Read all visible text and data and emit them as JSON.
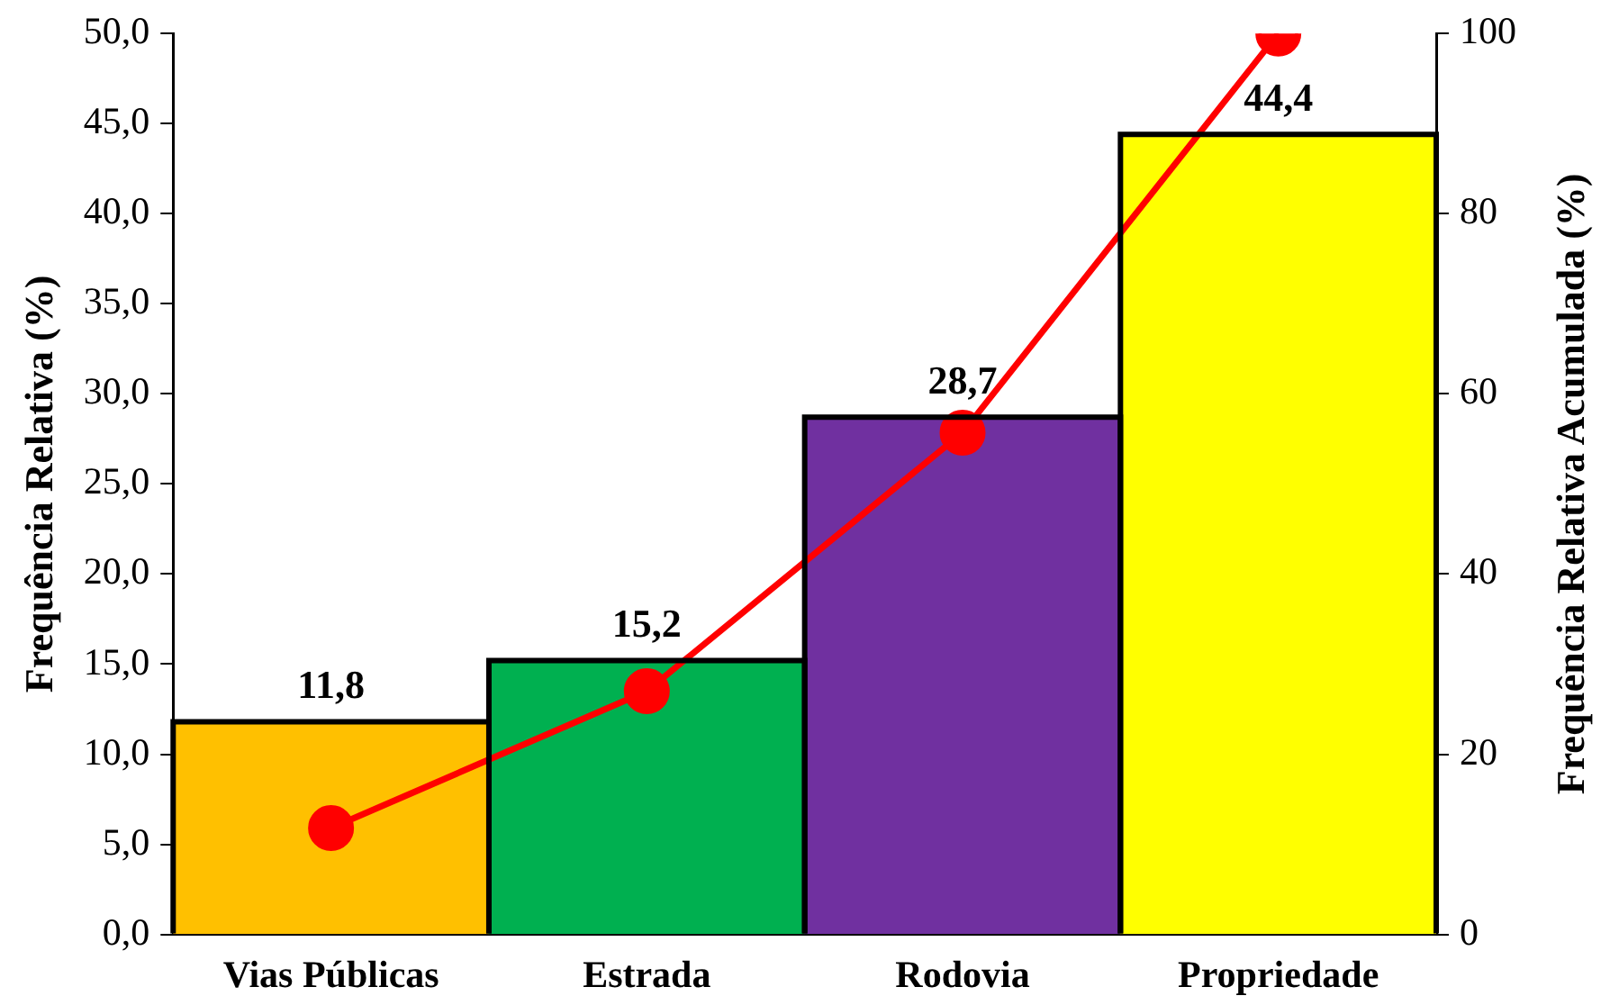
{
  "chart_data": {
    "type": "bar",
    "ylabel": "Frequência Relativa (%)",
    "y2label": "Frequência Relativa Acumulada (%)",
    "categories": [
      "Vias Públicas",
      "Estrada",
      "Rodovia",
      "Propriedade"
    ],
    "series": [
      {
        "colors": [
          "#ffc000",
          "#00b050",
          "#7030a0",
          "#ffff00"
        ],
        "values": [
          11.8,
          15.2,
          28.7,
          44.4
        ],
        "value_labels": [
          "11,8",
          "15,2",
          "28,7",
          "44,4"
        ]
      },
      {
        "type": "line",
        "axis": "y2",
        "color": "#ff0000",
        "values": [
          11.8,
          27.0,
          55.7,
          100.0
        ]
      }
    ],
    "ylim": [
      0,
      50
    ],
    "yticks": [
      {
        "value": 0,
        "label": "0,0"
      },
      {
        "value": 5,
        "label": "5,0"
      },
      {
        "value": 10,
        "label": "10,0"
      },
      {
        "value": 15,
        "label": "15,0"
      },
      {
        "value": 20,
        "label": "20,0"
      },
      {
        "value": 25,
        "label": "25,0"
      },
      {
        "value": 30,
        "label": "30,0"
      },
      {
        "value": 35,
        "label": "35,0"
      },
      {
        "value": 40,
        "label": "40,0"
      },
      {
        "value": 45,
        "label": "45,0"
      },
      {
        "value": 50,
        "label": "50,0"
      }
    ],
    "y2lim": [
      0,
      100
    ],
    "y2ticks": [
      0,
      20,
      40,
      60,
      80,
      100
    ],
    "grid": false,
    "legend": false,
    "marker": "circle",
    "line_style": "solid"
  }
}
